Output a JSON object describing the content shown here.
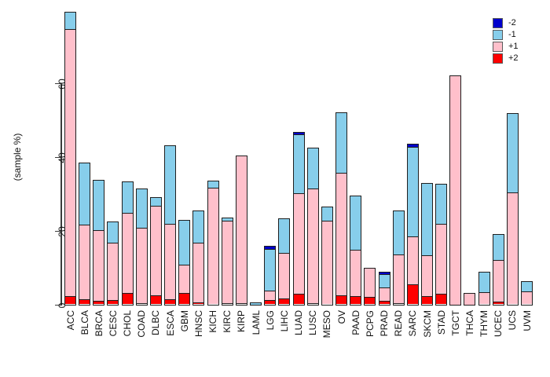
{
  "chart_data": {
    "type": "bar",
    "subtype": "stacked",
    "title": "",
    "xlabel": "",
    "ylabel": "(sample %)",
    "yticks": [
      0,
      20,
      40,
      60
    ],
    "ylim": [
      0,
      80
    ],
    "grid": false,
    "legend_position": "top-right",
    "categories": [
      "ACC",
      "BLCA",
      "BRCA",
      "CESC",
      "CHOL",
      "COAD",
      "DLBC",
      "ESCA",
      "GBM",
      "HNSC",
      "KICH",
      "KIRC",
      "KIRP",
      "LAML",
      "LGG",
      "LIHC",
      "LUAD",
      "LUSC",
      "MESO",
      "OV",
      "PAAD",
      "PCPG",
      "PRAD",
      "READ",
      "SARC",
      "SKCM",
      "STAD",
      "TGCT",
      "THCA",
      "THYM",
      "UCEC",
      "UCS",
      "UVM"
    ],
    "stack_order_bottom_to_top": [
      "+2",
      "+1",
      "-1",
      "-2"
    ],
    "series": [
      {
        "name": "+2",
        "color": "#FF0000",
        "values": [
          2.3,
          1.4,
          0.9,
          1.2,
          3.1,
          0.3,
          2.4,
          1.4,
          3.1,
          0.6,
          0,
          0.4,
          0.4,
          0,
          1.1,
          1.6,
          2.9,
          0.3,
          0,
          2.4,
          2.2,
          2.2,
          0.9,
          0.3,
          5.4,
          2.2,
          3.0,
          0,
          0,
          0,
          0.8,
          0,
          0
        ]
      },
      {
        "name": "+1",
        "color": "#FFC0CB",
        "values": [
          72.6,
          20.4,
          19.5,
          15.9,
          22.1,
          20.7,
          24.7,
          20.6,
          7.9,
          16.3,
          32.0,
          22.7,
          40.1,
          0,
          2.8,
          12.5,
          27.4,
          31.3,
          23.1,
          33.5,
          12.9,
          7.9,
          3.9,
          13.4,
          13.1,
          11.3,
          19.2,
          62.3,
          3.2,
          3.4,
          11.6,
          30.5,
          3.7
        ]
      },
      {
        "name": "-1",
        "color": "#87CEEB",
        "values": [
          4.6,
          16.9,
          13.5,
          5.6,
          8.3,
          10.7,
          2.2,
          21.3,
          12.1,
          8.8,
          1.7,
          0.7,
          0,
          0.7,
          11.6,
          9.5,
          16.1,
          11.0,
          3.5,
          16.4,
          14.5,
          0,
          3.9,
          12.0,
          24.5,
          19.5,
          10.6,
          0,
          0,
          5.7,
          6.8,
          21.5,
          2.7
        ]
      },
      {
        "name": "-2",
        "color": "#0000CC",
        "values": [
          0,
          0,
          0,
          0,
          0,
          0,
          0,
          0,
          0,
          0,
          0,
          0,
          0,
          0,
          0.5,
          0,
          0.5,
          0,
          0,
          0,
          0,
          0,
          0.4,
          0,
          0.7,
          0,
          0,
          0,
          0,
          0,
          0,
          0,
          0
        ]
      }
    ]
  },
  "legend": {
    "items": [
      {
        "label": "-2",
        "color": "#0000CC"
      },
      {
        "label": "-1",
        "color": "#87CEEB"
      },
      {
        "label": "+1",
        "color": "#FFC0CB"
      },
      {
        "label": "+2",
        "color": "#FF0000"
      }
    ]
  },
  "colors": {
    "plus2": "#FF0000",
    "plus1": "#FFC0CB",
    "minus1": "#87CEEB",
    "minus2": "#0000CC",
    "bar_border": "#1f1f1f",
    "axis": "#3c3c3c",
    "background": "#ffffff"
  }
}
